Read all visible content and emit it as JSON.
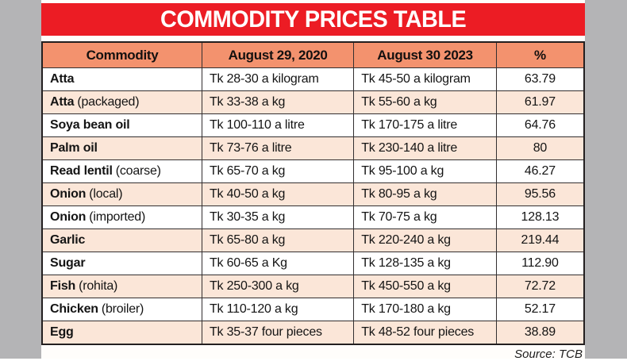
{
  "title": "COMMODITY PRICES TABLE",
  "source_label": "Source: TCB",
  "colors": {
    "title_bar": "#ec1c24",
    "header_row": "#f3926e",
    "alt_row": "#fbe6d8",
    "side_strips": "#b4b4b6",
    "border": "#231f20"
  },
  "table": {
    "headers": [
      "Commodity",
      "August 29, 2020",
      "August 30 2023",
      "%"
    ],
    "rows": [
      {
        "name": "Atta",
        "qualifier": "",
        "price_2020": "Tk 28-30 a kilogram",
        "price_2023": "Tk 45-50 a kilogram",
        "pct": "63.79"
      },
      {
        "name": "Atta",
        "qualifier": "(packaged)",
        "price_2020": "Tk 33-38 a kg",
        "price_2023": "Tk 55-60 a kg",
        "pct": "61.97"
      },
      {
        "name": "Soya bean oil",
        "qualifier": "",
        "price_2020": "Tk 100-110 a litre",
        "price_2023": "Tk 170-175 a litre",
        "pct": "64.76"
      },
      {
        "name": "Palm oil",
        "qualifier": "",
        "price_2020": "Tk 73-76 a litre",
        "price_2023": "Tk 230-140 a litre",
        "pct": "80"
      },
      {
        "name": "Read lentil",
        "qualifier": "(coarse)",
        "price_2020": "Tk 65-70 a kg",
        "price_2023": "Tk 95-100 a kg",
        "pct": "46.27"
      },
      {
        "name": "Onion",
        "qualifier": "(local)",
        "price_2020": "Tk 40-50 a kg",
        "price_2023": "Tk 80-95 a kg",
        "pct": "95.56"
      },
      {
        "name": "Onion",
        "qualifier": "(imported)",
        "price_2020": "Tk 30-35 a kg",
        "price_2023": "Tk 70-75 a kg",
        "pct": "128.13"
      },
      {
        "name": "Garlic",
        "qualifier": "",
        "price_2020": "Tk 65-80 a kg",
        "price_2023": "Tk 220-240 a kg",
        "pct": "219.44"
      },
      {
        "name": "Sugar",
        "qualifier": "",
        "price_2020": "Tk 60-65 a Kg",
        "price_2023": "Tk 128-135 a kg",
        "pct": "112.90"
      },
      {
        "name": "Fish",
        "qualifier": "(rohita)",
        "price_2020": "Tk 250-300 a kg",
        "price_2023": "Tk 450-550 a kg",
        "pct": "72.72"
      },
      {
        "name": "Chicken",
        "qualifier": "(broiler)",
        "price_2020": "Tk 110-120 a kg",
        "price_2023": "Tk 170-180 a kg",
        "pct": "52.17"
      },
      {
        "name": "Egg",
        "qualifier": "",
        "price_2020": "Tk 35-37 four pieces",
        "price_2023": "Tk 48-52 four pieces",
        "pct": "38.89"
      }
    ]
  },
  "chart_data": {
    "type": "table",
    "title": "COMMODITY PRICES TABLE",
    "columns": [
      "Commodity",
      "August 29, 2020",
      "August 30 2023",
      "%"
    ],
    "rows": [
      [
        "Atta",
        "Tk 28-30 a kilogram",
        "Tk 45-50 a kilogram",
        63.79
      ],
      [
        "Atta (packaged)",
        "Tk 33-38 a kg",
        "Tk 55-60 a kg",
        61.97
      ],
      [
        "Soya bean oil",
        "Tk 100-110 a litre",
        "Tk 170-175 a litre",
        64.76
      ],
      [
        "Palm oil",
        "Tk 73-76 a litre",
        "Tk 230-140 a litre",
        80
      ],
      [
        "Read lentil (coarse)",
        "Tk 65-70 a kg",
        "Tk 95-100 a kg",
        46.27
      ],
      [
        "Onion (local)",
        "Tk 40-50 a kg",
        "Tk 80-95 a kg",
        95.56
      ],
      [
        "Onion (imported)",
        "Tk 30-35 a kg",
        "Tk 70-75 a kg",
        128.13
      ],
      [
        "Garlic",
        "Tk 65-80 a kg",
        "Tk 220-240 a kg",
        219.44
      ],
      [
        "Sugar",
        "Tk 60-65 a Kg",
        "Tk 128-135 a kg",
        112.9
      ],
      [
        "Fish (rohita)",
        "Tk 250-300 a kg",
        "Tk 450-550 a kg",
        72.72
      ],
      [
        "Chicken (broiler)",
        "Tk 110-120 a kg",
        "Tk 170-180 a kg",
        52.17
      ],
      [
        "Egg",
        "Tk 35-37 four pieces",
        "Tk 48-52 four pieces",
        38.89
      ]
    ],
    "source": "Source: TCB"
  }
}
